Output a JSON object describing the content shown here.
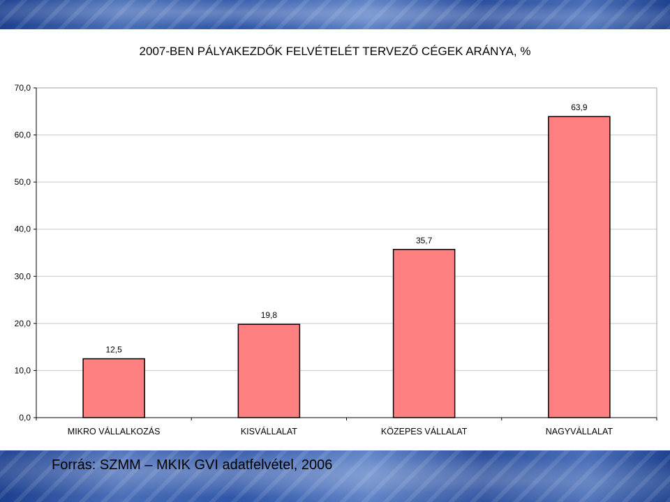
{
  "chart_data": {
    "type": "bar",
    "title": "2007-BEN PÁLYAKEZDŐK FELVÉTELÉT TERVEZŐ CÉGEK ARÁNYA, %",
    "categories": [
      "MIKRO VÁLLALKOZÁS",
      "KISVÁLLALAT",
      "KÖZEPES VÁLLALAT",
      "NAGYVÁLLALAT"
    ],
    "values": [
      12.5,
      19.8,
      35.7,
      63.9
    ],
    "value_labels": [
      "12,5",
      "19,8",
      "35,7",
      "63,9"
    ],
    "ylim": [
      0,
      70
    ],
    "yticks": [
      0,
      10,
      20,
      30,
      40,
      50,
      60,
      70
    ],
    "ytick_labels": [
      "0,0",
      "10,0",
      "20,0",
      "30,0",
      "40,0",
      "50,0",
      "60,0",
      "70,0"
    ],
    "xlabel": "",
    "ylabel": "",
    "grid": true,
    "bar_color": "#ff8080"
  },
  "footer": {
    "source": "Forrás: SZMM – MKIK GVI adatfelvétel, 2006"
  }
}
